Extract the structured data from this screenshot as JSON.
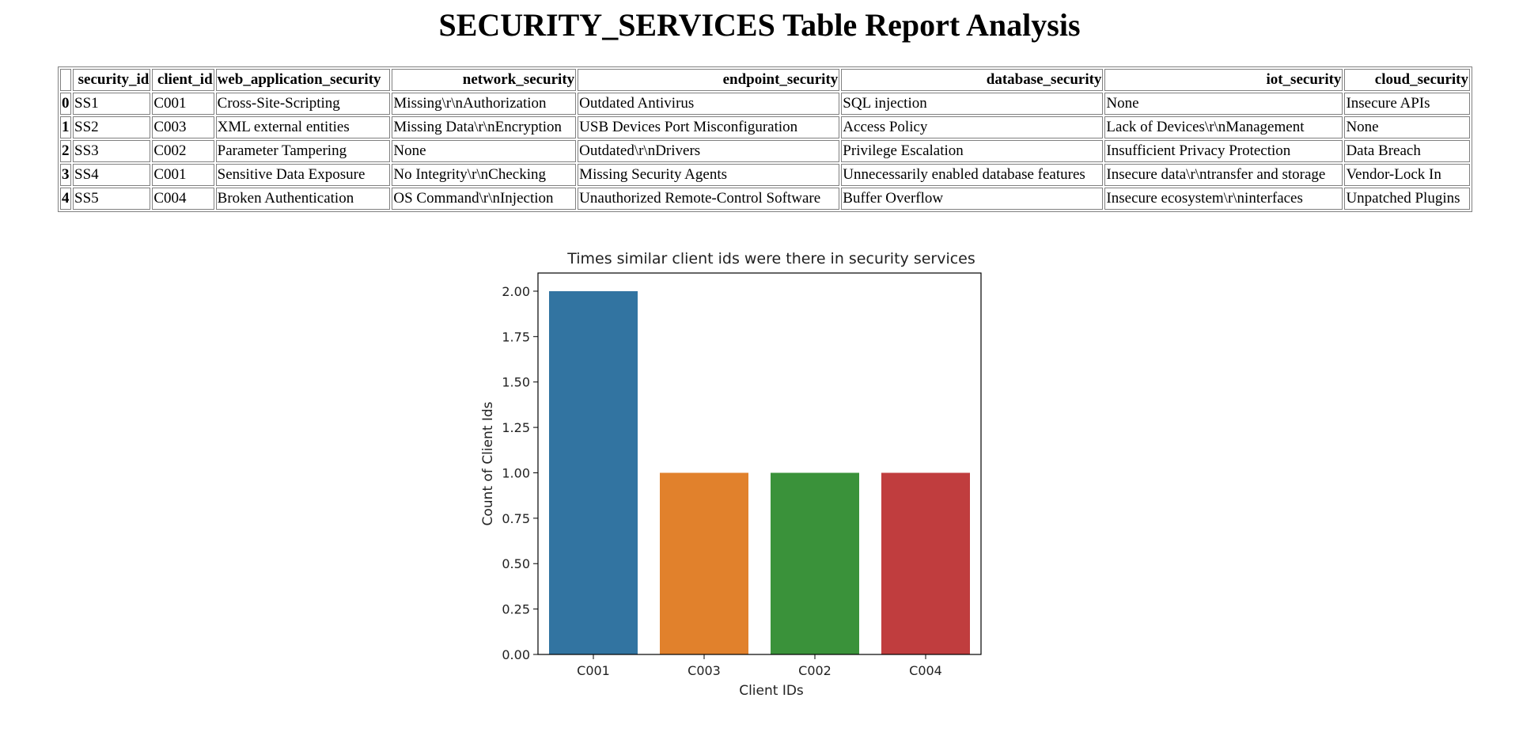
{
  "page": {
    "title": "SECURITY_SERVICES Table Report Analysis"
  },
  "table": {
    "columns": [
      "",
      "security_id",
      "client_id",
      "web_application_security",
      "network_security",
      "endpoint_security",
      "database_security",
      "iot_security",
      "cloud_security"
    ],
    "rows": [
      {
        "index": "0",
        "cells": [
          "SS1",
          "C001",
          "Cross-Site-Scripting",
          "Missing\\r\\nAuthorization",
          "Outdated Antivirus",
          "SQL injection",
          "None",
          "Insecure APIs"
        ]
      },
      {
        "index": "1",
        "cells": [
          "SS2",
          "C003",
          "XML external entities",
          "Missing Data\\r\\nEncryption",
          "USB Devices Port Misconfiguration",
          "Access Policy",
          "Lack of Devices\\r\\nManagement",
          "None"
        ]
      },
      {
        "index": "2",
        "cells": [
          "SS3",
          "C002",
          "Parameter Tampering",
          "None",
          "Outdated\\r\\nDrivers",
          "Privilege Escalation",
          "Insufficient Privacy Protection",
          "Data Breach"
        ]
      },
      {
        "index": "3",
        "cells": [
          "SS4",
          "C001",
          "Sensitive Data Exposure",
          "No Integrity\\r\\nChecking",
          "Missing Security Agents",
          "Unnecessarily enabled database features",
          "Insecure data\\r\\ntransfer and storage",
          "Vendor-Lock In"
        ]
      },
      {
        "index": "4",
        "cells": [
          "SS5",
          "C004",
          "Broken Authentication",
          "OS Command\\r\\nInjection",
          "Unauthorized Remote-Control Software",
          "Buffer Overflow",
          "Insecure ecosystem\\r\\ninterfaces",
          "Unpatched Plugins"
        ]
      }
    ]
  },
  "chart_data": {
    "type": "bar",
    "title": "Times similar client ids were there in security services",
    "xlabel": "Client IDs",
    "ylabel": "Count of Client Ids",
    "categories": [
      "C001",
      "C003",
      "C002",
      "C004"
    ],
    "values": [
      2,
      1,
      1,
      1
    ],
    "colors": [
      "#3274a1",
      "#e1812c",
      "#3a923a",
      "#c03d3e"
    ],
    "ylim": [
      0,
      2.1
    ],
    "yticks": [
      "0.00",
      "0.25",
      "0.50",
      "0.75",
      "1.00",
      "1.25",
      "1.50",
      "1.75",
      "2.00"
    ],
    "grid": false
  }
}
